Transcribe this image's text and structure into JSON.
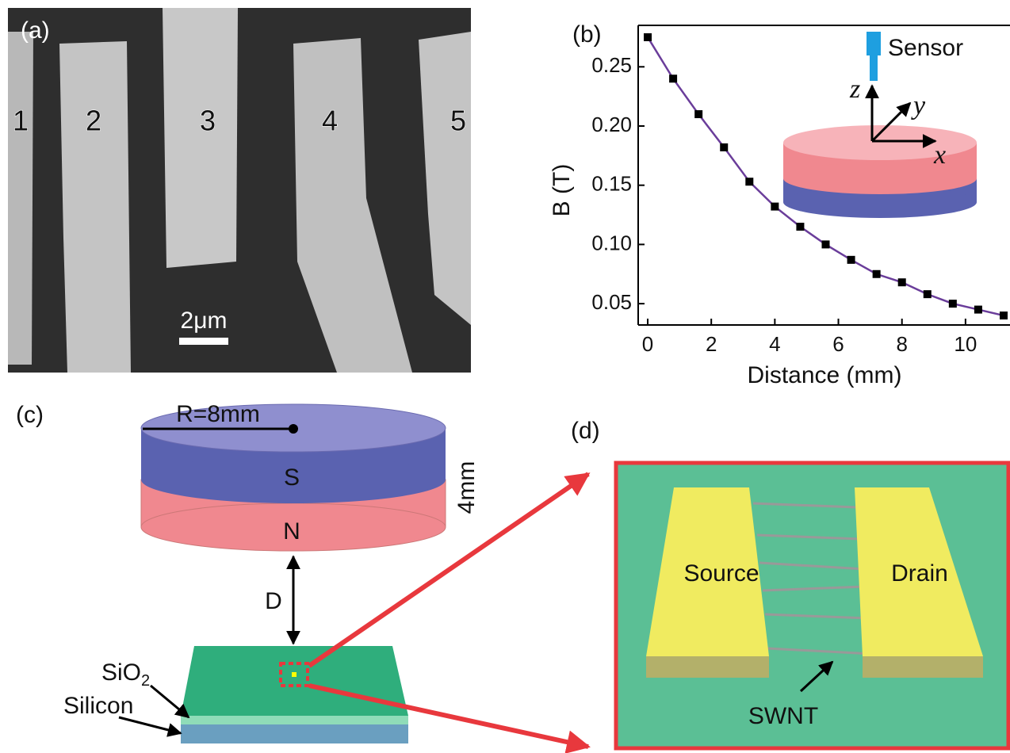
{
  "chart_data": {
    "type": "line",
    "panel_label": "(b)",
    "x_label": "Distance (mm)",
    "y_label": "B (T)",
    "x": [
      0,
      0.8,
      1.6,
      2.4,
      3.2,
      4.0,
      4.8,
      5.6,
      6.4,
      7.2,
      8.0,
      8.8,
      9.6,
      10.4,
      11.2
    ],
    "series": [
      {
        "name": "B",
        "color": "#6a3d9a",
        "values": [
          0.275,
          0.24,
          0.21,
          0.182,
          0.153,
          0.132,
          0.115,
          0.1,
          0.087,
          0.075,
          0.068,
          0.058,
          0.05,
          0.045,
          0.04
        ]
      }
    ],
    "marker_color": "#000000",
    "xlim": [
      -0.3,
      11.4
    ],
    "ylim": [
      0.032,
      0.285
    ],
    "xticks": [
      0,
      2,
      4,
      6,
      8,
      10
    ],
    "yticks": [
      0.05,
      {
        "value": 0.1,
        "label": "0.10"
      },
      0.15,
      {
        "value": 0.2,
        "label": "0.20"
      },
      0.25
    ],
    "inset": {
      "sensor": "Sensor",
      "z": "z",
      "y": "y",
      "x": "x"
    }
  },
  "panels": {
    "a": {
      "label": "(a)",
      "electrodes": [
        "1",
        "2",
        "3",
        "4",
        "5"
      ],
      "scale_bar": "2μm"
    },
    "c": {
      "label": "(c)",
      "radius": "R=8mm",
      "south": "S",
      "north": "N",
      "thickness": "4mm",
      "distance": "D",
      "oxide": {
        "text": "SiO",
        "subscript": "2"
      },
      "substrate": "Silicon"
    },
    "d": {
      "label": "(d)",
      "source": "Source",
      "drain": "Drain",
      "tube": "SWNT"
    }
  }
}
